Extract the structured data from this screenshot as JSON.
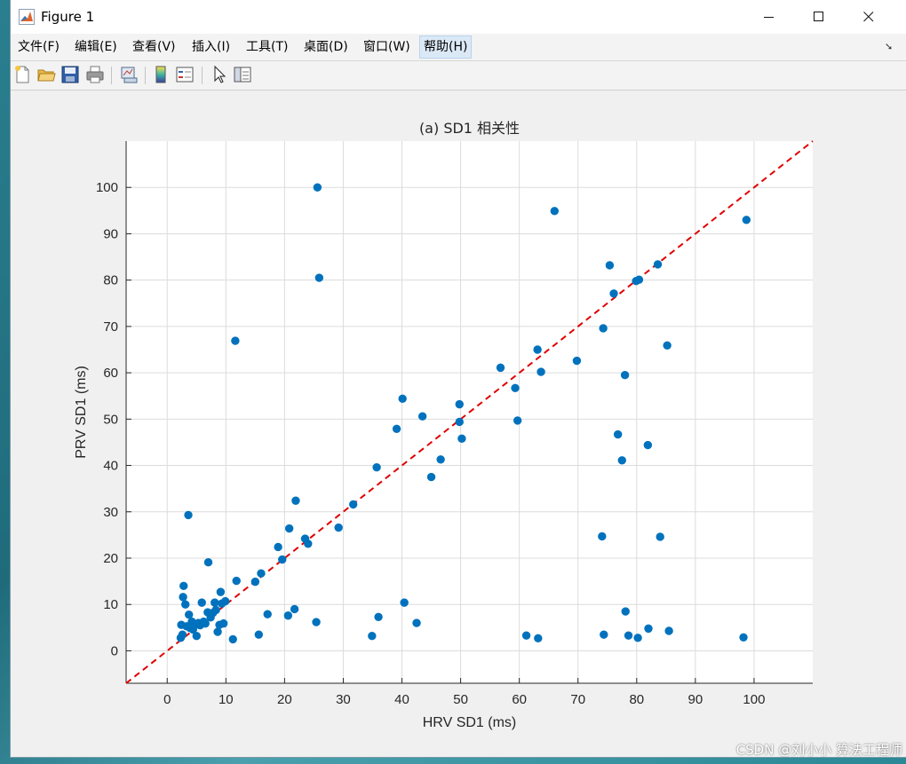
{
  "window": {
    "title": "Figure 1"
  },
  "menus": [
    {
      "label": "文件(F)"
    },
    {
      "label": "编辑(E)"
    },
    {
      "label": "查看(V)"
    },
    {
      "label": "插入(I)"
    },
    {
      "label": "工具(T)"
    },
    {
      "label": "桌面(D)"
    },
    {
      "label": "窗口(W)"
    },
    {
      "label": "帮助(H)"
    }
  ],
  "toolbar": [
    "new-figure-icon",
    "open-file-icon",
    "save-icon",
    "print-icon",
    "link-plot-icon",
    "colorbar-icon",
    "legend-icon",
    "pointer-icon",
    "property-inspector-icon"
  ],
  "watermark": "CSDN @刘小小  算法工程师",
  "colors": {
    "points": "#0072BD",
    "refline": "#E00000",
    "grid": "#dcdcdc"
  },
  "chart_data": {
    "type": "scatter",
    "title": "(a) SD1 相关性",
    "xlabel": "HRV SD1 (ms)",
    "ylabel": "PRV SD1 (ms)",
    "xlim": [
      -7,
      110
    ],
    "ylim": [
      -7,
      110
    ],
    "xticks": [
      0,
      10,
      20,
      30,
      40,
      50,
      60,
      70,
      80,
      90,
      100
    ],
    "yticks": [
      0,
      10,
      20,
      30,
      40,
      50,
      60,
      70,
      80,
      90,
      100
    ],
    "grid": true,
    "reference_line": "y = x (dashed)",
    "points": [
      [
        2.3,
        2.8
      ],
      [
        2.6,
        3.5
      ],
      [
        2.4,
        5.6
      ],
      [
        2.7,
        11.6
      ],
      [
        2.8,
        14.0
      ],
      [
        3.1,
        10.0
      ],
      [
        3.3,
        5.3
      ],
      [
        3.7,
        7.8
      ],
      [
        3.9,
        4.9
      ],
      [
        4.2,
        6.3
      ],
      [
        4.4,
        4.6
      ],
      [
        4.8,
        5.8
      ],
      [
        5.0,
        3.2
      ],
      [
        5.3,
        6.0
      ],
      [
        5.6,
        5.5
      ],
      [
        5.9,
        10.4
      ],
      [
        6.2,
        6.3
      ],
      [
        6.5,
        5.9
      ],
      [
        6.9,
        8.3
      ],
      [
        7.0,
        19.1
      ],
      [
        7.4,
        7.2
      ],
      [
        7.8,
        8.2
      ],
      [
        8.1,
        10.4
      ],
      [
        8.3,
        8.8
      ],
      [
        8.6,
        4.1
      ],
      [
        8.9,
        5.6
      ],
      [
        9.1,
        12.7
      ],
      [
        9.3,
        10.2
      ],
      [
        9.6,
        5.9
      ],
      [
        9.9,
        10.7
      ],
      [
        11.2,
        2.5
      ],
      [
        11.8,
        15.1
      ],
      [
        11.6,
        66.9
      ],
      [
        15.0,
        14.9
      ],
      [
        15.6,
        3.5
      ],
      [
        16.0,
        16.7
      ],
      [
        17.1,
        7.9
      ],
      [
        18.9,
        22.4
      ],
      [
        19.6,
        19.7
      ],
      [
        20.6,
        7.6
      ],
      [
        20.8,
        26.4
      ],
      [
        21.7,
        9.0
      ],
      [
        21.9,
        32.4
      ],
      [
        23.5,
        24.2
      ],
      [
        24.0,
        23.1
      ],
      [
        25.4,
        6.2
      ],
      [
        25.6,
        100.0
      ],
      [
        25.9,
        80.5
      ],
      [
        29.2,
        26.6
      ],
      [
        31.7,
        31.6
      ],
      [
        34.9,
        3.2
      ],
      [
        35.7,
        39.6
      ],
      [
        36.0,
        7.3
      ],
      [
        3.6,
        29.3
      ],
      [
        39.1,
        47.9
      ],
      [
        40.1,
        54.4
      ],
      [
        40.4,
        10.4
      ],
      [
        42.5,
        6.0
      ],
      [
        43.5,
        50.6
      ],
      [
        45.0,
        37.5
      ],
      [
        46.6,
        41.3
      ],
      [
        49.8,
        53.2
      ],
      [
        49.8,
        49.4
      ],
      [
        50.2,
        45.8
      ],
      [
        56.8,
        61.1
      ],
      [
        59.3,
        56.7
      ],
      [
        59.7,
        49.7
      ],
      [
        61.2,
        3.3
      ],
      [
        63.1,
        65.0
      ],
      [
        63.2,
        2.7
      ],
      [
        63.7,
        60.2
      ],
      [
        66.0,
        94.9
      ],
      [
        69.8,
        62.6
      ],
      [
        74.1,
        24.7
      ],
      [
        74.3,
        69.6
      ],
      [
        74.4,
        3.5
      ],
      [
        75.4,
        83.2
      ],
      [
        76.1,
        77.1
      ],
      [
        76.8,
        46.7
      ],
      [
        77.5,
        41.1
      ],
      [
        78.0,
        59.5
      ],
      [
        78.1,
        8.5
      ],
      [
        78.6,
        3.3
      ],
      [
        79.9,
        79.8
      ],
      [
        80.2,
        2.8
      ],
      [
        80.4,
        80.1
      ],
      [
        81.9,
        44.4
      ],
      [
        82.0,
        4.8
      ],
      [
        83.6,
        83.4
      ],
      [
        84.0,
        24.6
      ],
      [
        85.2,
        65.9
      ],
      [
        85.5,
        4.3
      ],
      [
        98.2,
        2.9
      ],
      [
        98.7,
        93.0
      ]
    ]
  }
}
